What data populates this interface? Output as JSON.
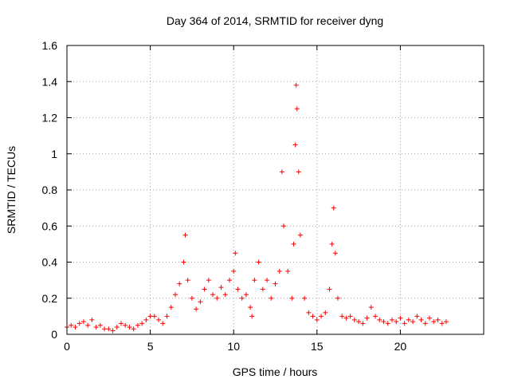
{
  "chart_data": {
    "type": "scatter",
    "title": "Day 364 of 2014, SRMTID for receiver dyng",
    "xlabel": "GPS time / hours",
    "ylabel": "SRMTID / TECUs",
    "xlim": [
      0,
      25
    ],
    "ylim": [
      0,
      1.6
    ],
    "x_ticks": [
      0,
      5,
      10,
      15,
      20
    ],
    "x_tick_labels": [
      "0",
      "5",
      "10",
      "15",
      "20"
    ],
    "y_ticks": [
      0,
      0.2,
      0.4,
      0.6,
      0.8,
      1,
      1.2,
      1.4,
      1.6
    ],
    "y_tick_labels": [
      "0",
      "0.2",
      "0.4",
      "0.6",
      "0.8",
      "1",
      "1.2",
      "1.4",
      "1.6"
    ],
    "grid": true,
    "marker": "+",
    "color": "#ff0000",
    "series": [
      {
        "name": "SRMTID",
        "x": [
          0,
          0.25,
          0.5,
          0.75,
          1,
          1.25,
          1.5,
          1.75,
          2,
          2.25,
          2.5,
          2.75,
          3,
          3.25,
          3.5,
          3.75,
          4,
          4.25,
          4.5,
          4.75,
          5,
          5.25,
          5.5,
          5.75,
          6,
          6.25,
          6.5,
          6.75,
          7,
          7.1,
          7.25,
          7.5,
          7.75,
          8,
          8.25,
          8.5,
          8.75,
          9,
          9.25,
          9.5,
          9.75,
          10,
          10.1,
          10.25,
          10.5,
          10.75,
          11,
          11.1,
          11.25,
          11.5,
          11.75,
          12,
          12.25,
          12.5,
          12.75,
          12.9,
          13,
          13.25,
          13.5,
          13.6,
          13.7,
          13.75,
          13.8,
          13.9,
          14,
          14.25,
          14.5,
          14.75,
          15,
          15.25,
          15.5,
          15.75,
          15.9,
          16,
          16.1,
          16.25,
          16.5,
          16.75,
          17,
          17.25,
          17.5,
          17.75,
          18,
          18.25,
          18.5,
          18.75,
          19,
          19.25,
          19.5,
          19.75,
          20,
          20.25,
          20.5,
          20.75,
          21,
          21.25,
          21.5,
          21.75,
          22,
          22.25,
          22.5,
          22.75
        ],
        "values": [
          0.04,
          0.05,
          0.04,
          0.06,
          0.07,
          0.05,
          0.08,
          0.04,
          0.05,
          0.03,
          0.03,
          0.02,
          0.04,
          0.06,
          0.05,
          0.04,
          0.03,
          0.05,
          0.06,
          0.08,
          0.1,
          0.1,
          0.08,
          0.06,
          0.1,
          0.15,
          0.22,
          0.28,
          0.4,
          0.55,
          0.3,
          0.2,
          0.14,
          0.18,
          0.25,
          0.3,
          0.22,
          0.2,
          0.26,
          0.22,
          0.3,
          0.35,
          0.45,
          0.25,
          0.2,
          0.22,
          0.15,
          0.1,
          0.3,
          0.4,
          0.25,
          0.3,
          0.2,
          0.28,
          0.35,
          0.9,
          0.6,
          0.35,
          0.2,
          0.5,
          1.05,
          1.38,
          1.25,
          0.9,
          0.55,
          0.2,
          0.12,
          0.1,
          0.08,
          0.1,
          0.12,
          0.25,
          0.5,
          0.7,
          0.45,
          0.2,
          0.1,
          0.09,
          0.1,
          0.08,
          0.07,
          0.06,
          0.09,
          0.15,
          0.1,
          0.08,
          0.07,
          0.06,
          0.08,
          0.07,
          0.09,
          0.06,
          0.08,
          0.07,
          0.1,
          0.08,
          0.06,
          0.09,
          0.07,
          0.08,
          0.06,
          0.07
        ]
      }
    ]
  }
}
